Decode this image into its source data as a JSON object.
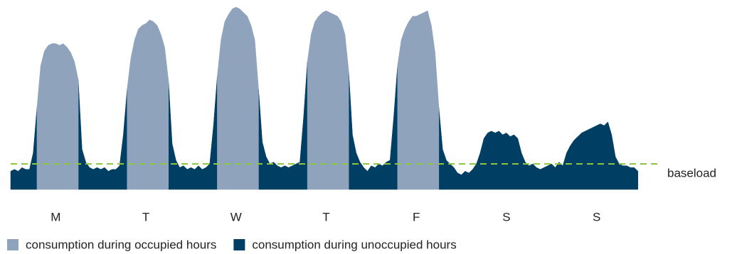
{
  "chart_data": {
    "type": "area",
    "categories": [
      "M",
      "T",
      "W",
      "T",
      "F",
      "S",
      "S"
    ],
    "ylim": [
      0,
      100
    ],
    "series": [
      {
        "name": "consumption during occupied hours",
        "color": "#8fa3bd",
        "values": [
          [
            null,
            null,
            null,
            null,
            null,
            null,
            null,
            45,
            68,
            76,
            79,
            80,
            80,
            79,
            80,
            78,
            75,
            70,
            60,
            null,
            null,
            null,
            null,
            null
          ],
          [
            null,
            null,
            null,
            null,
            null,
            null,
            null,
            55,
            72,
            82,
            88,
            90,
            91,
            93,
            92,
            90,
            85,
            78,
            60,
            null,
            null,
            null,
            null,
            null
          ],
          [
            null,
            null,
            null,
            null,
            null,
            null,
            null,
            62,
            82,
            92,
            96,
            99,
            100,
            99,
            97,
            95,
            90,
            82,
            55,
            null,
            null,
            null,
            null,
            null
          ],
          [
            null,
            null,
            null,
            null,
            null,
            null,
            null,
            70,
            85,
            92,
            95,
            97,
            98,
            97,
            96,
            95,
            92,
            85,
            65,
            null,
            null,
            null,
            null,
            null
          ],
          [
            null,
            null,
            null,
            null,
            null,
            null,
            null,
            68,
            82,
            88,
            92,
            95,
            95,
            96,
            97,
            98,
            90,
            75,
            45,
            null,
            null,
            null,
            null,
            null
          ],
          [
            null,
            null,
            null,
            null,
            null,
            null,
            null,
            null,
            null,
            null,
            null,
            null,
            null,
            null,
            null,
            null,
            null,
            null,
            null,
            null,
            null,
            null,
            null,
            null
          ],
          [
            null,
            null,
            null,
            null,
            null,
            null,
            null,
            null,
            null,
            null,
            null,
            null,
            null,
            null,
            null,
            null,
            null,
            null,
            null,
            null,
            null,
            null,
            null,
            null
          ]
        ]
      },
      {
        "name": "consumption during unoccupied hours",
        "color": "#003f63",
        "values": [
          [
            10,
            11,
            10,
            12,
            11,
            11,
            20,
            45,
            null,
            null,
            null,
            null,
            null,
            null,
            null,
            null,
            null,
            null,
            60,
            22,
            15,
            12,
            11,
            12
          ],
          [
            11,
            12,
            10,
            11,
            11,
            13,
            30,
            55,
            null,
            null,
            null,
            null,
            null,
            null,
            null,
            null,
            null,
            null,
            60,
            25,
            16,
            12,
            13,
            11
          ],
          [
            12,
            11,
            13,
            11,
            12,
            14,
            35,
            62,
            null,
            null,
            null,
            null,
            null,
            null,
            null,
            null,
            null,
            null,
            55,
            26,
            18,
            14,
            15,
            13
          ],
          [
            12,
            13,
            12,
            13,
            14,
            15,
            40,
            70,
            null,
            null,
            null,
            null,
            null,
            null,
            null,
            null,
            null,
            null,
            65,
            30,
            20,
            15,
            12,
            10
          ],
          [
            13,
            12,
            14,
            13,
            15,
            16,
            40,
            68,
            null,
            null,
            null,
            null,
            null,
            null,
            null,
            null,
            null,
            null,
            45,
            22,
            16,
            14,
            12,
            9
          ],
          [
            8,
            10,
            9,
            11,
            14,
            20,
            28,
            31,
            32,
            31,
            32,
            30,
            31,
            29,
            30,
            28,
            20,
            15,
            13,
            14,
            12,
            11,
            12,
            13
          ],
          [
            14,
            12,
            15,
            13,
            20,
            24,
            27,
            29,
            31,
            32,
            33,
            34,
            35,
            36,
            35,
            37,
            30,
            18,
            14,
            13,
            13,
            12,
            12,
            10
          ]
        ]
      }
    ],
    "baseload": {
      "label": "baseload",
      "value": 14,
      "color": "#8dc63f"
    }
  }
}
